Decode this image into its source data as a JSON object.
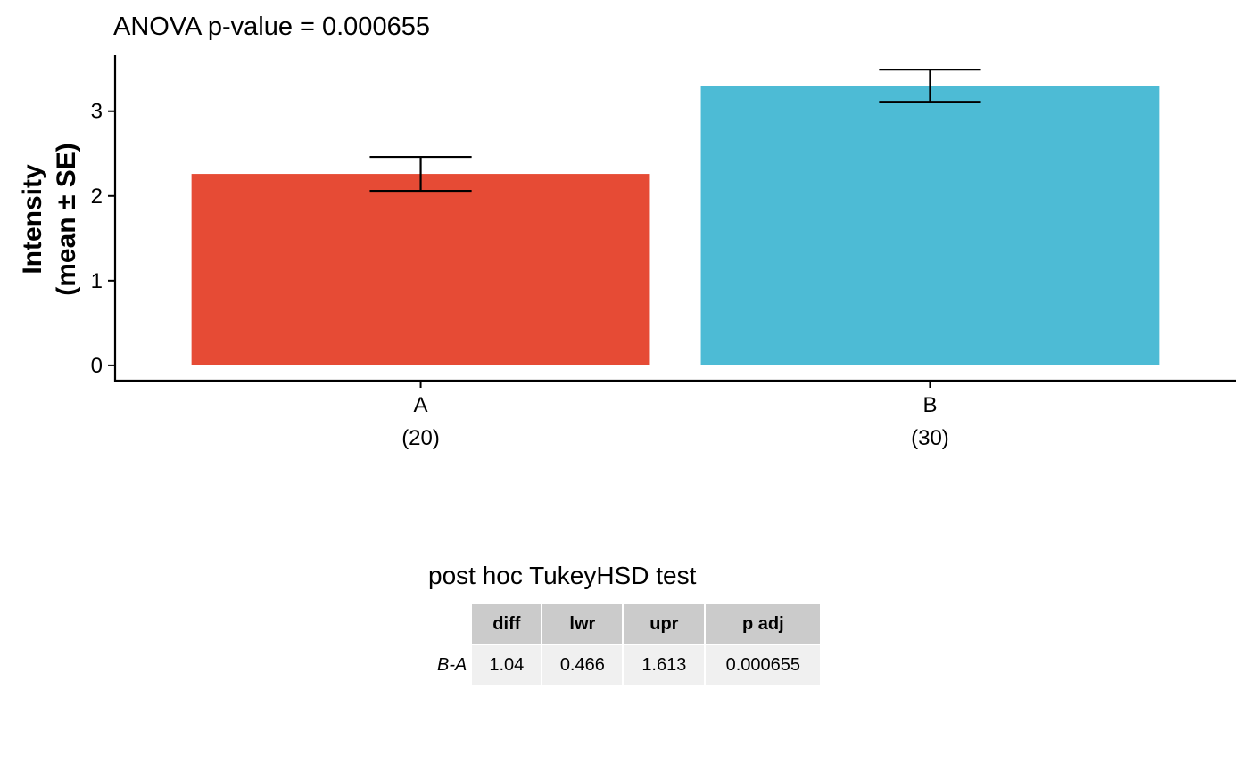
{
  "chart_data": {
    "type": "bar",
    "title": "ANOVA p-value = 0.000655",
    "ylabel_lines": [
      "Intensity",
      "(mean ± SE)"
    ],
    "xlabel": "",
    "categories": [
      "A",
      "B"
    ],
    "category_counts": [
      "(20)",
      "(30)"
    ],
    "values": [
      2.26,
      3.3
    ],
    "error_lower": [
      2.06,
      3.11
    ],
    "error_upper": [
      2.46,
      3.49
    ],
    "colors": [
      "#E64B35",
      "#4DBBD5"
    ],
    "ylim": [
      -0.18,
      3.66
    ],
    "yticks": [
      0,
      1,
      2,
      3
    ],
    "grid": false,
    "legend": "none"
  },
  "posthoc": {
    "title": "post hoc TukeyHSD test",
    "columns": [
      "diff",
      "lwr",
      "upr",
      "p adj"
    ],
    "rows": [
      {
        "label": "B-A",
        "cells": [
          "1.04",
          "0.466",
          "1.613",
          "0.000655"
        ]
      }
    ]
  }
}
